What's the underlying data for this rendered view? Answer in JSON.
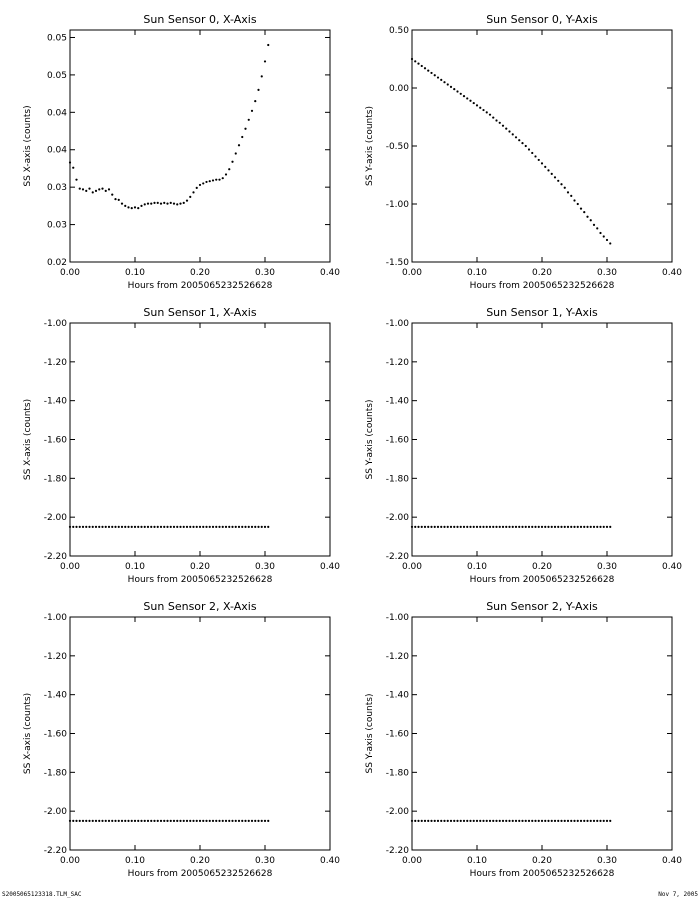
{
  "footer": {
    "left": "S2005065123318.TLM_SAC",
    "right": "Nov 7, 2005"
  },
  "chart_data": [
    {
      "type": "scatter",
      "title": "Sun Sensor 0, X-Axis",
      "xlabel": "Hours from 2005065232526628",
      "ylabel": "SS X-axis (counts)",
      "xlim": [
        0,
        0.4
      ],
      "ylim": [
        0.02,
        0.051
      ],
      "xticks": [
        0,
        0.1,
        0.2,
        0.3,
        0.4
      ],
      "xtick_labels": [
        "0.00",
        "0.10",
        "0.20",
        "0.30",
        "0.40"
      ],
      "yticks": [
        0.02,
        0.025,
        0.03,
        0.035,
        0.04,
        0.045,
        0.05
      ],
      "ytick_labels": [
        "0.02",
        "0.03",
        "0.03",
        "0.04",
        "0.04",
        "0.05",
        "0.05"
      ],
      "x": [
        0.0,
        0.005,
        0.01,
        0.015,
        0.02,
        0.025,
        0.03,
        0.035,
        0.04,
        0.045,
        0.05,
        0.055,
        0.06,
        0.065,
        0.07,
        0.075,
        0.08,
        0.085,
        0.09,
        0.095,
        0.1,
        0.105,
        0.11,
        0.115,
        0.12,
        0.125,
        0.13,
        0.135,
        0.14,
        0.145,
        0.15,
        0.155,
        0.16,
        0.165,
        0.17,
        0.175,
        0.18,
        0.185,
        0.19,
        0.195,
        0.2,
        0.205,
        0.21,
        0.215,
        0.22,
        0.225,
        0.23,
        0.235,
        0.24,
        0.245,
        0.25,
        0.255,
        0.26,
        0.265,
        0.27,
        0.275,
        0.28,
        0.285,
        0.29,
        0.295,
        0.3,
        0.305
      ],
      "y": [
        0.0333,
        0.0326,
        0.031,
        0.0298,
        0.0297,
        0.0295,
        0.0298,
        0.0293,
        0.0295,
        0.0297,
        0.0298,
        0.0295,
        0.0297,
        0.029,
        0.0284,
        0.0283,
        0.0278,
        0.0275,
        0.0273,
        0.0272,
        0.0273,
        0.0272,
        0.0275,
        0.0277,
        0.0278,
        0.0278,
        0.0279,
        0.0279,
        0.0278,
        0.0279,
        0.0278,
        0.0279,
        0.0278,
        0.0277,
        0.0278,
        0.0279,
        0.0282,
        0.0287,
        0.0293,
        0.0299,
        0.0303,
        0.0305,
        0.0307,
        0.0308,
        0.0309,
        0.031,
        0.031,
        0.0312,
        0.0317,
        0.0324,
        0.0334,
        0.0345,
        0.0356,
        0.0367,
        0.0378,
        0.039,
        0.0402,
        0.0415,
        0.043,
        0.0448,
        0.0468,
        0.049
      ]
    },
    {
      "type": "scatter",
      "title": "Sun Sensor 0, Y-Axis",
      "xlabel": "Hours from 2005065232526628",
      "ylabel": "SS Y-axis (counts)",
      "xlim": [
        0,
        0.4
      ],
      "ylim": [
        -1.5,
        0.5
      ],
      "xticks": [
        0,
        0.1,
        0.2,
        0.3,
        0.4
      ],
      "xtick_labels": [
        "0.00",
        "0.10",
        "0.20",
        "0.30",
        "0.40"
      ],
      "yticks": [
        -1.5,
        -1.0,
        -0.5,
        0.0,
        0.5
      ],
      "ytick_labels": [
        "-1.50",
        "-1.00",
        "-0.50",
        "0.00",
        "0.50"
      ],
      "x": [
        0.0,
        0.005,
        0.01,
        0.015,
        0.02,
        0.025,
        0.03,
        0.035,
        0.04,
        0.045,
        0.05,
        0.055,
        0.06,
        0.065,
        0.07,
        0.075,
        0.08,
        0.085,
        0.09,
        0.095,
        0.1,
        0.105,
        0.11,
        0.115,
        0.12,
        0.125,
        0.13,
        0.135,
        0.14,
        0.145,
        0.15,
        0.155,
        0.16,
        0.165,
        0.17,
        0.175,
        0.18,
        0.185,
        0.19,
        0.195,
        0.2,
        0.205,
        0.21,
        0.215,
        0.22,
        0.225,
        0.23,
        0.235,
        0.24,
        0.245,
        0.25,
        0.255,
        0.26,
        0.265,
        0.27,
        0.275,
        0.28,
        0.285,
        0.29,
        0.295,
        0.3,
        0.305
      ],
      "y": [
        0.25,
        0.23,
        0.21,
        0.19,
        0.17,
        0.15,
        0.13,
        0.11,
        0.09,
        0.07,
        0.05,
        0.03,
        0.01,
        -0.01,
        -0.03,
        -0.05,
        -0.07,
        -0.09,
        -0.11,
        -0.13,
        -0.15,
        -0.17,
        -0.19,
        -0.21,
        -0.23,
        -0.255,
        -0.28,
        -0.3,
        -0.325,
        -0.35,
        -0.375,
        -0.4,
        -0.425,
        -0.45,
        -0.475,
        -0.5,
        -0.53,
        -0.56,
        -0.59,
        -0.62,
        -0.65,
        -0.68,
        -0.71,
        -0.74,
        -0.77,
        -0.8,
        -0.83,
        -0.86,
        -0.9,
        -0.93,
        -0.97,
        -1.0,
        -1.04,
        -1.07,
        -1.11,
        -1.14,
        -1.18,
        -1.21,
        -1.25,
        -1.28,
        -1.31,
        -1.34
      ]
    },
    {
      "type": "scatter",
      "title": "Sun Sensor 1, X-Axis",
      "xlabel": "Hours from 2005065232526628",
      "ylabel": "SS X-axis (counts)",
      "xlim": [
        0,
        0.4
      ],
      "ylim": [
        -2.2,
        -1.0
      ],
      "xticks": [
        0,
        0.1,
        0.2,
        0.3,
        0.4
      ],
      "xtick_labels": [
        "0.00",
        "0.10",
        "0.20",
        "0.30",
        "0.40"
      ],
      "yticks": [
        -2.2,
        -2.0,
        -1.8,
        -1.6,
        -1.4,
        -1.2,
        -1.0
      ],
      "ytick_labels": [
        "-2.20",
        "-2.00",
        "-1.80",
        "-1.60",
        "-1.40",
        "-1.20",
        "-1.00"
      ],
      "x": [
        0.0,
        0.005,
        0.01,
        0.015,
        0.02,
        0.025,
        0.03,
        0.035,
        0.04,
        0.045,
        0.05,
        0.055,
        0.06,
        0.065,
        0.07,
        0.075,
        0.08,
        0.085,
        0.09,
        0.095,
        0.1,
        0.105,
        0.11,
        0.115,
        0.12,
        0.125,
        0.13,
        0.135,
        0.14,
        0.145,
        0.15,
        0.155,
        0.16,
        0.165,
        0.17,
        0.175,
        0.18,
        0.185,
        0.19,
        0.195,
        0.2,
        0.205,
        0.21,
        0.215,
        0.22,
        0.225,
        0.23,
        0.235,
        0.24,
        0.245,
        0.25,
        0.255,
        0.26,
        0.265,
        0.27,
        0.275,
        0.28,
        0.285,
        0.29,
        0.295,
        0.3,
        0.305
      ],
      "y": [
        -2.05,
        -2.05,
        -2.05,
        -2.05,
        -2.05,
        -2.05,
        -2.05,
        -2.05,
        -2.05,
        -2.05,
        -2.05,
        -2.05,
        -2.05,
        -2.05,
        -2.05,
        -2.05,
        -2.05,
        -2.05,
        -2.05,
        -2.05,
        -2.05,
        -2.05,
        -2.05,
        -2.05,
        -2.05,
        -2.05,
        -2.05,
        -2.05,
        -2.05,
        -2.05,
        -2.05,
        -2.05,
        -2.05,
        -2.05,
        -2.05,
        -2.05,
        -2.05,
        -2.05,
        -2.05,
        -2.05,
        -2.05,
        -2.05,
        -2.05,
        -2.05,
        -2.05,
        -2.05,
        -2.05,
        -2.05,
        -2.05,
        -2.05,
        -2.05,
        -2.05,
        -2.05,
        -2.05,
        -2.05,
        -2.05,
        -2.05,
        -2.05,
        -2.05,
        -2.05,
        -2.05,
        -2.05
      ]
    },
    {
      "type": "scatter",
      "title": "Sun Sensor 1, Y-Axis",
      "xlabel": "Hours from 2005065232526628",
      "ylabel": "SS Y-axis (counts)",
      "xlim": [
        0,
        0.4
      ],
      "ylim": [
        -2.2,
        -1.0
      ],
      "xticks": [
        0,
        0.1,
        0.2,
        0.3,
        0.4
      ],
      "xtick_labels": [
        "0.00",
        "0.10",
        "0.20",
        "0.30",
        "0.40"
      ],
      "yticks": [
        -2.2,
        -2.0,
        -1.8,
        -1.6,
        -1.4,
        -1.2,
        -1.0
      ],
      "ytick_labels": [
        "-2.20",
        "-2.00",
        "-1.80",
        "-1.60",
        "-1.40",
        "-1.20",
        "-1.00"
      ],
      "x": [
        0.0,
        0.005,
        0.01,
        0.015,
        0.02,
        0.025,
        0.03,
        0.035,
        0.04,
        0.045,
        0.05,
        0.055,
        0.06,
        0.065,
        0.07,
        0.075,
        0.08,
        0.085,
        0.09,
        0.095,
        0.1,
        0.105,
        0.11,
        0.115,
        0.12,
        0.125,
        0.13,
        0.135,
        0.14,
        0.145,
        0.15,
        0.155,
        0.16,
        0.165,
        0.17,
        0.175,
        0.18,
        0.185,
        0.19,
        0.195,
        0.2,
        0.205,
        0.21,
        0.215,
        0.22,
        0.225,
        0.23,
        0.235,
        0.24,
        0.245,
        0.25,
        0.255,
        0.26,
        0.265,
        0.27,
        0.275,
        0.28,
        0.285,
        0.29,
        0.295,
        0.3,
        0.305
      ],
      "y": [
        -2.05,
        -2.05,
        -2.05,
        -2.05,
        -2.05,
        -2.05,
        -2.05,
        -2.05,
        -2.05,
        -2.05,
        -2.05,
        -2.05,
        -2.05,
        -2.05,
        -2.05,
        -2.05,
        -2.05,
        -2.05,
        -2.05,
        -2.05,
        -2.05,
        -2.05,
        -2.05,
        -2.05,
        -2.05,
        -2.05,
        -2.05,
        -2.05,
        -2.05,
        -2.05,
        -2.05,
        -2.05,
        -2.05,
        -2.05,
        -2.05,
        -2.05,
        -2.05,
        -2.05,
        -2.05,
        -2.05,
        -2.05,
        -2.05,
        -2.05,
        -2.05,
        -2.05,
        -2.05,
        -2.05,
        -2.05,
        -2.05,
        -2.05,
        -2.05,
        -2.05,
        -2.05,
        -2.05,
        -2.05,
        -2.05,
        -2.05,
        -2.05,
        -2.05,
        -2.05,
        -2.05,
        -2.05
      ]
    },
    {
      "type": "scatter",
      "title": "Sun Sensor 2, X-Axis",
      "xlabel": "Hours from 2005065232526628",
      "ylabel": "SS X-axis (counts)",
      "xlim": [
        0,
        0.4
      ],
      "ylim": [
        -2.2,
        -1.0
      ],
      "xticks": [
        0,
        0.1,
        0.2,
        0.3,
        0.4
      ],
      "xtick_labels": [
        "0.00",
        "0.10",
        "0.20",
        "0.30",
        "0.40"
      ],
      "yticks": [
        -2.2,
        -2.0,
        -1.8,
        -1.6,
        -1.4,
        -1.2,
        -1.0
      ],
      "ytick_labels": [
        "-2.20",
        "-2.00",
        "-1.80",
        "-1.60",
        "-1.40",
        "-1.20",
        "-1.00"
      ],
      "x": [
        0.0,
        0.005,
        0.01,
        0.015,
        0.02,
        0.025,
        0.03,
        0.035,
        0.04,
        0.045,
        0.05,
        0.055,
        0.06,
        0.065,
        0.07,
        0.075,
        0.08,
        0.085,
        0.09,
        0.095,
        0.1,
        0.105,
        0.11,
        0.115,
        0.12,
        0.125,
        0.13,
        0.135,
        0.14,
        0.145,
        0.15,
        0.155,
        0.16,
        0.165,
        0.17,
        0.175,
        0.18,
        0.185,
        0.19,
        0.195,
        0.2,
        0.205,
        0.21,
        0.215,
        0.22,
        0.225,
        0.23,
        0.235,
        0.24,
        0.245,
        0.25,
        0.255,
        0.26,
        0.265,
        0.27,
        0.275,
        0.28,
        0.285,
        0.29,
        0.295,
        0.3,
        0.305
      ],
      "y": [
        -2.05,
        -2.05,
        -2.05,
        -2.05,
        -2.05,
        -2.05,
        -2.05,
        -2.05,
        -2.05,
        -2.05,
        -2.05,
        -2.05,
        -2.05,
        -2.05,
        -2.05,
        -2.05,
        -2.05,
        -2.05,
        -2.05,
        -2.05,
        -2.05,
        -2.05,
        -2.05,
        -2.05,
        -2.05,
        -2.05,
        -2.05,
        -2.05,
        -2.05,
        -2.05,
        -2.05,
        -2.05,
        -2.05,
        -2.05,
        -2.05,
        -2.05,
        -2.05,
        -2.05,
        -2.05,
        -2.05,
        -2.05,
        -2.05,
        -2.05,
        -2.05,
        -2.05,
        -2.05,
        -2.05,
        -2.05,
        -2.05,
        -2.05,
        -2.05,
        -2.05,
        -2.05,
        -2.05,
        -2.05,
        -2.05,
        -2.05,
        -2.05,
        -2.05,
        -2.05,
        -2.05,
        -2.05
      ]
    },
    {
      "type": "scatter",
      "title": "Sun Sensor 2, Y-Axis",
      "xlabel": "Hours from 2005065232526628",
      "ylabel": "SS Y-axis (counts)",
      "xlim": [
        0,
        0.4
      ],
      "ylim": [
        -2.2,
        -1.0
      ],
      "xticks": [
        0,
        0.1,
        0.2,
        0.3,
        0.4
      ],
      "xtick_labels": [
        "0.00",
        "0.10",
        "0.20",
        "0.30",
        "0.40"
      ],
      "yticks": [
        -2.2,
        -2.0,
        -1.8,
        -1.6,
        -1.4,
        -1.2,
        -1.0
      ],
      "ytick_labels": [
        "-2.20",
        "-2.00",
        "-1.80",
        "-1.60",
        "-1.40",
        "-1.20",
        "-1.00"
      ],
      "x": [
        0.0,
        0.005,
        0.01,
        0.015,
        0.02,
        0.025,
        0.03,
        0.035,
        0.04,
        0.045,
        0.05,
        0.055,
        0.06,
        0.065,
        0.07,
        0.075,
        0.08,
        0.085,
        0.09,
        0.095,
        0.1,
        0.105,
        0.11,
        0.115,
        0.12,
        0.125,
        0.13,
        0.135,
        0.14,
        0.145,
        0.15,
        0.155,
        0.16,
        0.165,
        0.17,
        0.175,
        0.18,
        0.185,
        0.19,
        0.195,
        0.2,
        0.205,
        0.21,
        0.215,
        0.22,
        0.225,
        0.23,
        0.235,
        0.24,
        0.245,
        0.25,
        0.255,
        0.26,
        0.265,
        0.27,
        0.275,
        0.28,
        0.285,
        0.29,
        0.295,
        0.3,
        0.305
      ],
      "y": [
        -2.05,
        -2.05,
        -2.05,
        -2.05,
        -2.05,
        -2.05,
        -2.05,
        -2.05,
        -2.05,
        -2.05,
        -2.05,
        -2.05,
        -2.05,
        -2.05,
        -2.05,
        -2.05,
        -2.05,
        -2.05,
        -2.05,
        -2.05,
        -2.05,
        -2.05,
        -2.05,
        -2.05,
        -2.05,
        -2.05,
        -2.05,
        -2.05,
        -2.05,
        -2.05,
        -2.05,
        -2.05,
        -2.05,
        -2.05,
        -2.05,
        -2.05,
        -2.05,
        -2.05,
        -2.05,
        -2.05,
        -2.05,
        -2.05,
        -2.05,
        -2.05,
        -2.05,
        -2.05,
        -2.05,
        -2.05,
        -2.05,
        -2.05,
        -2.05,
        -2.05,
        -2.05,
        -2.05,
        -2.05,
        -2.05,
        -2.05,
        -2.05,
        -2.05,
        -2.05,
        -2.05,
        -2.05
      ]
    }
  ]
}
